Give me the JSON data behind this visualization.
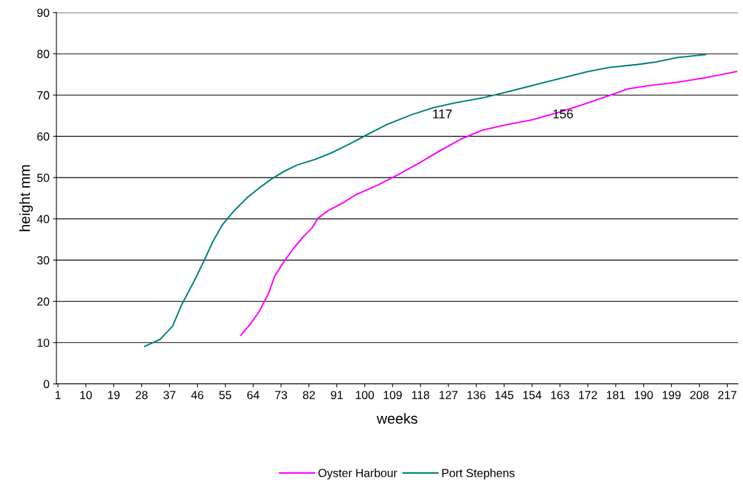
{
  "chart_data": {
    "type": "line",
    "xlabel": "weeks",
    "ylabel": "height mm",
    "xlim": [
      0.5,
      220.5
    ],
    "xticks": [
      1,
      10,
      19,
      28,
      37,
      46,
      55,
      64,
      73,
      82,
      91,
      100,
      109,
      118,
      127,
      136,
      145,
      154,
      163,
      172,
      181,
      190,
      199,
      208,
      217
    ],
    "ylim": [
      0,
      90
    ],
    "yticks": [
      0,
      10,
      20,
      30,
      40,
      50,
      60,
      70,
      80,
      90
    ],
    "grid": "y",
    "legend": "bottom",
    "marker": "none",
    "line_style": "solid",
    "annotations": [
      "117",
      "156"
    ],
    "series": [
      {
        "name": "Oyster Harbour",
        "color": "#ff00ff",
        "x": [
          60,
          63,
          66,
          69,
          71,
          74,
          77,
          80,
          83,
          85,
          88,
          93,
          97,
          104,
          111,
          118,
          124,
          131,
          138,
          145,
          154,
          163,
          172,
          179,
          185,
          192,
          201,
          210,
          220
        ],
        "values": [
          11.8,
          14.4,
          17.6,
          22.0,
          26.2,
          29.7,
          32.8,
          35.5,
          37.8,
          40.2,
          41.9,
          43.9,
          45.8,
          48.1,
          50.8,
          53.7,
          56.4,
          59.3,
          61.5,
          62.7,
          64.0,
          65.9,
          68.1,
          69.9,
          71.5,
          72.3,
          73.1,
          74.2,
          75.7
        ]
      },
      {
        "name": "Port Stephens",
        "color": "#008080",
        "x": [
          29,
          34,
          38,
          41,
          45,
          48,
          51,
          54,
          58,
          62,
          66,
          70,
          74,
          78,
          84,
          89,
          95,
          101,
          107,
          115,
          122,
          129,
          138,
          145,
          154,
          163,
          172,
          179,
          188,
          194,
          201,
          210
        ],
        "values": [
          9.1,
          10.8,
          14.0,
          19.3,
          25.0,
          29.6,
          34.5,
          38.5,
          42.1,
          45.1,
          47.5,
          49.7,
          51.5,
          53.0,
          54.4,
          55.9,
          58.1,
          60.5,
          62.8,
          65.2,
          66.9,
          68.1,
          69.3,
          70.6,
          72.3,
          74.0,
          75.7,
          76.7,
          77.4,
          78.0,
          79.1,
          79.8
        ]
      }
    ]
  }
}
